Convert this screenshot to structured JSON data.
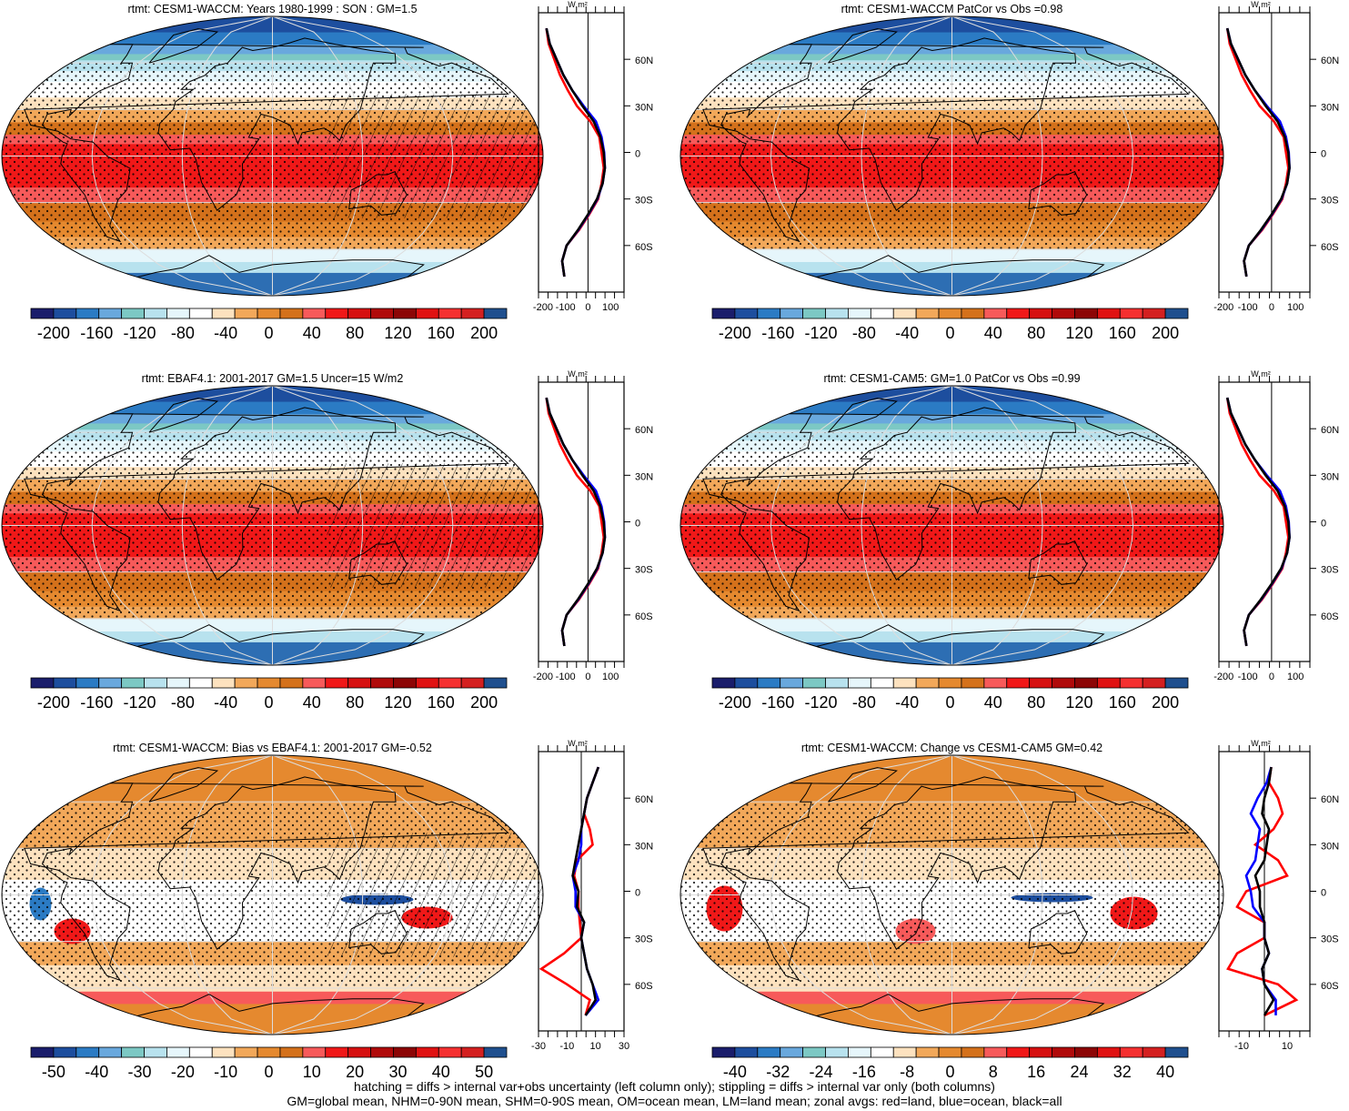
{
  "figure": {
    "footnote_line1": "hatching = diffs > internal var+obs uncertainty (left column only); stippling = diffs > internal var only (both columns)",
    "footnote_line2": "GM=global mean, NHM=0-90N mean, SHM=0-90S mean, OM=ocean mean, LM=land mean; zonal avgs: red=land, blue=ocean, black=all"
  },
  "chart_data": [
    {
      "type": "heatmap",
      "title": "rtmt: CESM1-WACCM: Years 1980-1999 : SON : GM=1.5",
      "colorbar_labels": [
        "-200",
        "-160",
        "-120",
        "-80",
        "-40",
        "0",
        "40",
        "80",
        "120",
        "160",
        "200"
      ],
      "colorbar_colors": [
        "#1a1d6b",
        "#1d4e9e",
        "#2b7bc4",
        "#69a8dd",
        "#7cc8c4",
        "#b8e2ee",
        "#e6f6fb",
        "#ffffff",
        "#fde2bf",
        "#f2a85a",
        "#e5892f",
        "#d4711b",
        "#f75a5a",
        "#f01818",
        "#d61010",
        "#b00a0a",
        "#8c0505",
        "#e01212",
        "#f53030",
        "#d42020",
        "#1f4f8e"
      ],
      "latitude_ticks": [
        "60N",
        "30N",
        "0",
        "30S",
        "60S"
      ],
      "zonal": {
        "unit": "W m²",
        "x_range": [
          -220,
          160
        ],
        "x_ticks": [
          "-200",
          "-100",
          "0",
          "100"
        ],
        "lat": [
          80,
          70,
          60,
          50,
          40,
          30,
          20,
          10,
          0,
          -10,
          -20,
          -30,
          -40,
          -50,
          -60,
          -70,
          -80
        ],
        "all": [
          -185,
          -170,
          -140,
          -110,
          -70,
          -25,
          25,
          55,
          70,
          75,
          65,
          40,
          0,
          -45,
          -95,
          -115,
          -105
        ],
        "ocean": [
          -185,
          -170,
          -140,
          -110,
          -70,
          -20,
          35,
          60,
          72,
          75,
          65,
          42,
          2,
          -43,
          -95,
          -115,
          -105
        ],
        "land": [
          -185,
          -175,
          -150,
          -125,
          -90,
          -50,
          10,
          50,
          60,
          70,
          60,
          45,
          5,
          -40,
          -95,
          -115,
          -105
        ]
      }
    },
    {
      "type": "heatmap",
      "title": "rtmt: CESM1-WACCM PatCor vs Obs =0.98",
      "colorbar_labels": [
        "-200",
        "-160",
        "-120",
        "-80",
        "-40",
        "0",
        "40",
        "80",
        "120",
        "160",
        "200"
      ],
      "colorbar_colors": [
        "#1a1d6b",
        "#1d4e9e",
        "#2b7bc4",
        "#69a8dd",
        "#7cc8c4",
        "#b8e2ee",
        "#e6f6fb",
        "#ffffff",
        "#fde2bf",
        "#f2a85a",
        "#e5892f",
        "#d4711b",
        "#f75a5a",
        "#f01818",
        "#d61010",
        "#b00a0a",
        "#8c0505",
        "#e01212",
        "#f53030",
        "#d42020",
        "#1f4f8e"
      ],
      "latitude_ticks": [
        "60N",
        "30N",
        "0",
        "30S",
        "60S"
      ],
      "zonal": {
        "unit": "W m²",
        "x_range": [
          -220,
          160
        ],
        "x_ticks": [
          "-200",
          "-100",
          "0",
          "100"
        ],
        "lat": [
          80,
          70,
          60,
          50,
          40,
          30,
          20,
          10,
          0,
          -10,
          -20,
          -30,
          -40,
          -50,
          -60,
          -70,
          -80
        ],
        "all": [
          -185,
          -170,
          -140,
          -110,
          -70,
          -25,
          25,
          55,
          70,
          75,
          65,
          40,
          0,
          -45,
          -95,
          -115,
          -105
        ],
        "ocean": [
          -185,
          -170,
          -140,
          -110,
          -70,
          -20,
          35,
          60,
          72,
          75,
          65,
          42,
          2,
          -43,
          -95,
          -115,
          -105
        ],
        "land": [
          -185,
          -175,
          -150,
          -125,
          -90,
          -50,
          10,
          50,
          60,
          70,
          60,
          45,
          5,
          -40,
          -95,
          -115,
          -105
        ]
      }
    },
    {
      "type": "heatmap",
      "title": "rtmt: EBAF4.1: 2001-2017 GM=1.5 Uncer=15 W/m2",
      "colorbar_labels": [
        "-200",
        "-160",
        "-120",
        "-80",
        "-40",
        "0",
        "40",
        "80",
        "120",
        "160",
        "200"
      ],
      "colorbar_colors": [
        "#1a1d6b",
        "#1d4e9e",
        "#2b7bc4",
        "#69a8dd",
        "#7cc8c4",
        "#b8e2ee",
        "#e6f6fb",
        "#ffffff",
        "#fde2bf",
        "#f2a85a",
        "#e5892f",
        "#d4711b",
        "#f75a5a",
        "#f01818",
        "#d61010",
        "#b00a0a",
        "#8c0505",
        "#e01212",
        "#f53030",
        "#d42020",
        "#1f4f8e"
      ],
      "latitude_ticks": [
        "60N",
        "30N",
        "0",
        "30S",
        "60S"
      ],
      "zonal": {
        "unit": "W m²",
        "x_range": [
          -220,
          160
        ],
        "x_ticks": [
          "-200",
          "-100",
          "0",
          "100"
        ],
        "lat": [
          80,
          70,
          60,
          50,
          40,
          30,
          20,
          10,
          0,
          -10,
          -20,
          -30,
          -40,
          -50,
          -60,
          -70,
          -80
        ],
        "all": [
          -185,
          -170,
          -140,
          -110,
          -70,
          -25,
          25,
          55,
          70,
          75,
          65,
          40,
          0,
          -45,
          -95,
          -115,
          -105
        ],
        "ocean": [
          -185,
          -170,
          -140,
          -110,
          -70,
          -20,
          35,
          60,
          72,
          75,
          65,
          42,
          2,
          -43,
          -95,
          -115,
          -105
        ],
        "land": [
          -185,
          -175,
          -150,
          -125,
          -90,
          -50,
          10,
          50,
          60,
          70,
          60,
          45,
          5,
          -40,
          -95,
          -115,
          -105
        ]
      }
    },
    {
      "type": "heatmap",
      "title": "rtmt: CESM1-CAM5: GM=1.0 PatCor vs Obs =0.99",
      "colorbar_labels": [
        "-200",
        "-160",
        "-120",
        "-80",
        "-40",
        "0",
        "40",
        "80",
        "120",
        "160",
        "200"
      ],
      "colorbar_colors": [
        "#1a1d6b",
        "#1d4e9e",
        "#2b7bc4",
        "#69a8dd",
        "#7cc8c4",
        "#b8e2ee",
        "#e6f6fb",
        "#ffffff",
        "#fde2bf",
        "#f2a85a",
        "#e5892f",
        "#d4711b",
        "#f75a5a",
        "#f01818",
        "#d61010",
        "#b00a0a",
        "#8c0505",
        "#e01212",
        "#f53030",
        "#d42020",
        "#1f4f8e"
      ],
      "latitude_ticks": [
        "60N",
        "30N",
        "0",
        "30S",
        "60S"
      ],
      "zonal": {
        "unit": "W m²",
        "x_range": [
          -220,
          160
        ],
        "x_ticks": [
          "-200",
          "-100",
          "0",
          "100"
        ],
        "lat": [
          80,
          70,
          60,
          50,
          40,
          30,
          20,
          10,
          0,
          -10,
          -20,
          -30,
          -40,
          -50,
          -60,
          -70,
          -80
        ],
        "all": [
          -185,
          -170,
          -140,
          -110,
          -70,
          -25,
          25,
          55,
          70,
          75,
          65,
          40,
          0,
          -45,
          -95,
          -115,
          -105
        ],
        "ocean": [
          -185,
          -170,
          -140,
          -110,
          -70,
          -20,
          35,
          60,
          72,
          75,
          65,
          42,
          2,
          -43,
          -95,
          -115,
          -105
        ],
        "land": [
          -185,
          -175,
          -150,
          -125,
          -90,
          -50,
          10,
          50,
          60,
          70,
          60,
          45,
          5,
          -40,
          -95,
          -115,
          -105
        ]
      }
    },
    {
      "type": "heatmap",
      "title": "rtmt: CESM1-WACCM: Bias vs EBAF4.1: 2001-2017  GM=-0.52",
      "colorbar_labels": [
        "-50",
        "-40",
        "-30",
        "-20",
        "-10",
        "0",
        "10",
        "20",
        "30",
        "40",
        "50"
      ],
      "colorbar_colors": [
        "#1a1d6b",
        "#1d4e9e",
        "#2b7bc4",
        "#69a8dd",
        "#7cc8c4",
        "#b8e2ee",
        "#e6f6fb",
        "#ffffff",
        "#fde2bf",
        "#f2a85a",
        "#e5892f",
        "#d4711b",
        "#f75a5a",
        "#f01818",
        "#d61010",
        "#b00a0a",
        "#8c0505",
        "#e01212",
        "#f53030",
        "#d42020",
        "#1f4f8e"
      ],
      "latitude_ticks": [
        "60N",
        "30N",
        "0",
        "30S",
        "60S"
      ],
      "zonal": {
        "unit": "W m²",
        "x_range": [
          -30,
          30
        ],
        "x_ticks": [
          "-30",
          "-10",
          "10",
          "30"
        ],
        "lat": [
          80,
          70,
          60,
          50,
          40,
          30,
          20,
          10,
          0,
          -10,
          -20,
          -30,
          -40,
          -50,
          -60,
          -70,
          -80
        ],
        "all": [
          12,
          8,
          4,
          2,
          0,
          -2,
          -4,
          -6,
          -2,
          -3,
          2,
          0,
          2,
          4,
          8,
          10,
          3
        ],
        "ocean": [
          12,
          8,
          4,
          2,
          0,
          0,
          -2,
          -6,
          -4,
          -4,
          2,
          0,
          2,
          4,
          8,
          12,
          3
        ],
        "land": [
          12,
          8,
          4,
          2,
          6,
          8,
          -3,
          -5,
          -2,
          -2,
          -1,
          0,
          -12,
          -28,
          -10,
          6,
          3
        ]
      }
    },
    {
      "type": "heatmap",
      "title": "rtmt: CESM1-WACCM: Change vs CESM1-CAM5 GM=0.42",
      "colorbar_labels": [
        "-40",
        "-32",
        "-24",
        "-16",
        "-8",
        "0",
        "8",
        "16",
        "24",
        "32",
        "40"
      ],
      "colorbar_colors": [
        "#1a1d6b",
        "#1d4e9e",
        "#2b7bc4",
        "#69a8dd",
        "#7cc8c4",
        "#b8e2ee",
        "#e6f6fb",
        "#ffffff",
        "#fde2bf",
        "#f2a85a",
        "#e5892f",
        "#d4711b",
        "#f75a5a",
        "#f01818",
        "#d61010",
        "#b00a0a",
        "#8c0505",
        "#e01212",
        "#f53030",
        "#d42020",
        "#1f4f8e"
      ],
      "latitude_ticks": [
        "60N",
        "30N",
        "0",
        "30S",
        "60S"
      ],
      "zonal": {
        "unit": "W m²",
        "x_range": [
          -20,
          20
        ],
        "x_ticks": [
          "-10",
          "10"
        ],
        "lat": [
          80,
          70,
          60,
          50,
          40,
          30,
          20,
          10,
          0,
          -10,
          -20,
          -30,
          -40,
          -50,
          -60,
          -70,
          -80
        ],
        "all": [
          3,
          2,
          0,
          -1,
          2,
          1,
          0,
          -4,
          -2,
          -2,
          0,
          0,
          2,
          -1,
          0,
          4,
          0
        ],
        "ocean": [
          3,
          1,
          -3,
          -6,
          -2,
          -3,
          -4,
          -8,
          -6,
          -5,
          0,
          0,
          2,
          -1,
          0,
          5,
          5
        ],
        "land": [
          3,
          2,
          6,
          8,
          4,
          -4,
          6,
          10,
          -8,
          -12,
          0,
          0,
          -12,
          -16,
          6,
          14,
          0
        ]
      }
    }
  ]
}
